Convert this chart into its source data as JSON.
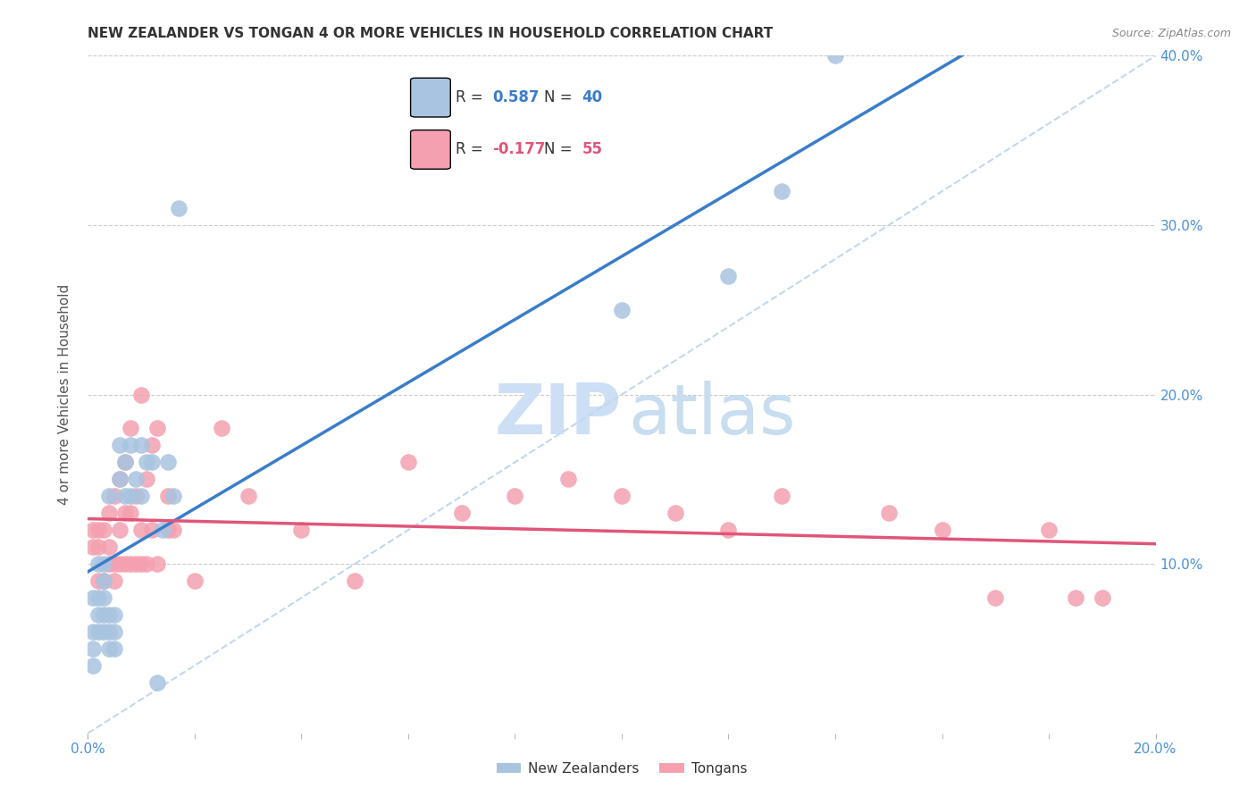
{
  "title": "NEW ZEALANDER VS TONGAN 4 OR MORE VEHICLES IN HOUSEHOLD CORRELATION CHART",
  "source": "Source: ZipAtlas.com",
  "ylabel": "4 or more Vehicles in Household",
  "xlim": [
    0.0,
    0.2
  ],
  "ylim": [
    0.0,
    0.4
  ],
  "xticks": [
    0.0,
    0.2
  ],
  "yticks": [
    0.1,
    0.2,
    0.3,
    0.4
  ],
  "legend_nz": "New Zealanders",
  "legend_tonga": "Tongans",
  "r_nz": 0.587,
  "n_nz": 40,
  "r_tonga": -0.177,
  "n_tonga": 55,
  "nz_color": "#a8c4e0",
  "tonga_color": "#f4a0b0",
  "nz_line_color": "#3a7dc9",
  "tonga_line_color": "#e05578",
  "diag_line_color": "#c0d8f0",
  "watermark_zip_color": "#ccdff5",
  "watermark_atlas_color": "#c8ddf0",
  "axis_label_color": "#4a90d9",
  "axis_tick_color": "#888888",
  "grid_color": "#cccccc",
  "nz_x": [
    0.001,
    0.001,
    0.001,
    0.001,
    0.002,
    0.002,
    0.002,
    0.002,
    0.003,
    0.003,
    0.003,
    0.003,
    0.003,
    0.004,
    0.004,
    0.004,
    0.004,
    0.005,
    0.005,
    0.005,
    0.006,
    0.006,
    0.007,
    0.007,
    0.008,
    0.008,
    0.009,
    0.01,
    0.01,
    0.011,
    0.012,
    0.013,
    0.014,
    0.015,
    0.016,
    0.017,
    0.1,
    0.12,
    0.13,
    0.14
  ],
  "nz_y": [
    0.04,
    0.05,
    0.06,
    0.08,
    0.06,
    0.07,
    0.08,
    0.1,
    0.06,
    0.07,
    0.08,
    0.09,
    0.1,
    0.05,
    0.06,
    0.07,
    0.14,
    0.05,
    0.06,
    0.07,
    0.15,
    0.17,
    0.14,
    0.16,
    0.14,
    0.17,
    0.15,
    0.14,
    0.17,
    0.16,
    0.16,
    0.03,
    0.12,
    0.16,
    0.14,
    0.31,
    0.25,
    0.27,
    0.32,
    0.4
  ],
  "tonga_x": [
    0.001,
    0.001,
    0.002,
    0.002,
    0.002,
    0.003,
    0.003,
    0.004,
    0.004,
    0.004,
    0.005,
    0.005,
    0.005,
    0.006,
    0.006,
    0.006,
    0.007,
    0.007,
    0.007,
    0.008,
    0.008,
    0.008,
    0.009,
    0.009,
    0.01,
    0.01,
    0.01,
    0.011,
    0.011,
    0.012,
    0.012,
    0.013,
    0.013,
    0.015,
    0.015,
    0.016,
    0.02,
    0.025,
    0.03,
    0.04,
    0.05,
    0.06,
    0.07,
    0.08,
    0.09,
    0.1,
    0.11,
    0.12,
    0.13,
    0.15,
    0.16,
    0.17,
    0.18,
    0.185,
    0.19
  ],
  "tonga_y": [
    0.11,
    0.12,
    0.09,
    0.11,
    0.12,
    0.09,
    0.12,
    0.1,
    0.11,
    0.13,
    0.09,
    0.1,
    0.14,
    0.1,
    0.12,
    0.15,
    0.1,
    0.13,
    0.16,
    0.1,
    0.13,
    0.18,
    0.1,
    0.14,
    0.1,
    0.12,
    0.2,
    0.1,
    0.15,
    0.12,
    0.17,
    0.1,
    0.18,
    0.12,
    0.14,
    0.12,
    0.09,
    0.18,
    0.14,
    0.12,
    0.09,
    0.16,
    0.13,
    0.14,
    0.15,
    0.14,
    0.13,
    0.12,
    0.14,
    0.13,
    0.12,
    0.08,
    0.12,
    0.08,
    0.08
  ]
}
